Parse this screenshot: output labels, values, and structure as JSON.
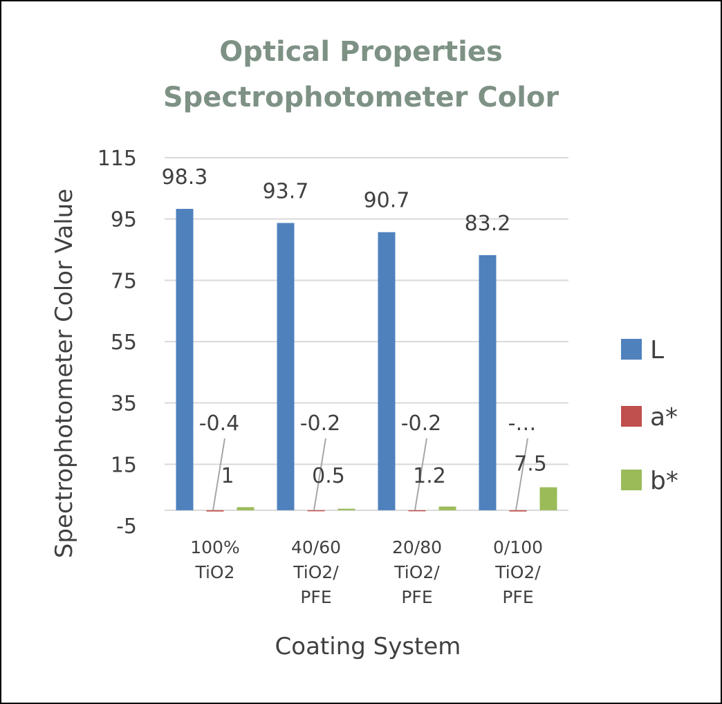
{
  "chart_data": {
    "type": "bar",
    "title": [
      "Optical Properties",
      "Spectrophotometer Color"
    ],
    "xlabel": "Coating System",
    "ylabel": "Spectrophotometer Color Value",
    "ylim": [
      -5,
      115
    ],
    "yticks": [
      "115",
      "95",
      "75",
      "55",
      "35",
      "15",
      "-5"
    ],
    "ytick_values": [
      115,
      95,
      75,
      55,
      35,
      15,
      -5
    ],
    "categories": [
      [
        "100%",
        "TiO2"
      ],
      [
        "40/60",
        "TiO2/",
        "PFE"
      ],
      [
        "20/80",
        "TiO2/",
        "PFE"
      ],
      [
        "0/100",
        "TiO2/",
        "PFE"
      ]
    ],
    "series": [
      {
        "name": "L",
        "color": "#4f81bd",
        "values": [
          98.3,
          93.7,
          90.7,
          83.2
        ],
        "labels": [
          "98.3",
          "93.7",
          "90.7",
          "83.2"
        ]
      },
      {
        "name": "a*",
        "color": "#c0504d",
        "values": [
          -0.4,
          -0.2,
          -0.2,
          -0.4
        ],
        "labels": [
          "-0.4",
          "-0.2",
          "-0.2",
          "-…"
        ]
      },
      {
        "name": "b*",
        "color": "#9bbb59",
        "values": [
          1,
          0.5,
          1.2,
          7.5
        ],
        "labels": [
          "1",
          "0.5",
          "1.2",
          "7.5"
        ]
      }
    ],
    "grid": true,
    "legend_position": "right",
    "gridline_color": "#d9d9d9",
    "leader_line_color": "#a6a6a6"
  }
}
